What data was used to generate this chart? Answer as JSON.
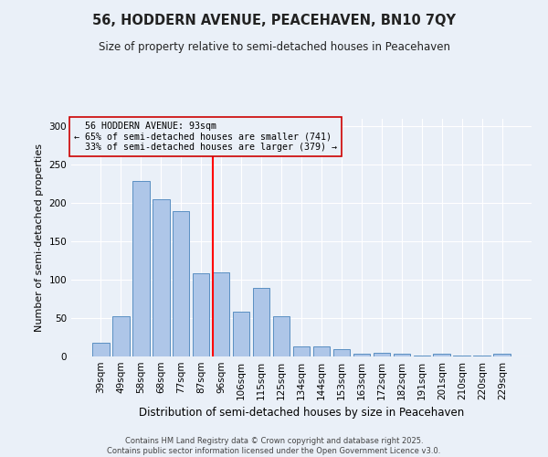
{
  "title_line1": "56, HODDERN AVENUE, PEACEHAVEN, BN10 7QY",
  "title_line2": "Size of property relative to semi-detached houses in Peacehaven",
  "xlabel": "Distribution of semi-detached houses by size in Peacehaven",
  "ylabel": "Number of semi-detached properties",
  "categories": [
    "39sqm",
    "49sqm",
    "58sqm",
    "68sqm",
    "77sqm",
    "87sqm",
    "96sqm",
    "106sqm",
    "115sqm",
    "125sqm",
    "134sqm",
    "144sqm",
    "153sqm",
    "163sqm",
    "172sqm",
    "182sqm",
    "191sqm",
    "201sqm",
    "210sqm",
    "220sqm",
    "229sqm"
  ],
  "values": [
    18,
    52,
    229,
    205,
    189,
    108,
    110,
    58,
    90,
    52,
    13,
    13,
    9,
    4,
    5,
    4,
    1,
    3,
    1,
    1,
    3
  ],
  "bar_color": "#aec6e8",
  "bar_edge_color": "#5a8fc2",
  "property_label": "56 HODDERN AVENUE: 93sqm",
  "pct_smaller": 65,
  "count_smaller": 741,
  "pct_larger": 33,
  "count_larger": 379,
  "vline_x_index": 6,
  "vline_color": "red",
  "annotation_box_color": "#cc0000",
  "ylim": [
    0,
    310
  ],
  "yticks": [
    0,
    50,
    100,
    150,
    200,
    250,
    300
  ],
  "bg_color": "#eaf0f8",
  "grid_color": "#ffffff",
  "footer_line1": "Contains HM Land Registry data © Crown copyright and database right 2025.",
  "footer_line2": "Contains public sector information licensed under the Open Government Licence v3.0."
}
